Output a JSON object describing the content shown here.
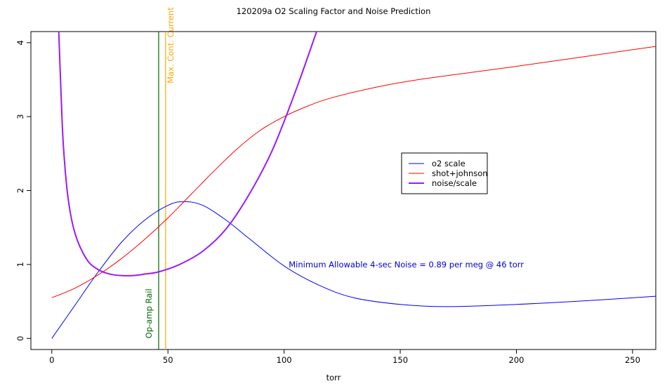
{
  "chart_data": {
    "type": "line",
    "title": "120209a   O2 Scaling Factor and Noise Prediction",
    "xlabel": "torr",
    "ylabel": "",
    "xlim": [
      -9,
      260
    ],
    "ylim": [
      -0.15,
      4.15
    ],
    "xticks": [
      0,
      50,
      100,
      150,
      200,
      250
    ],
    "yticks": [
      0,
      1,
      2,
      3,
      4
    ],
    "grid": false,
    "legend_position": "center-right",
    "series": [
      {
        "name": "o2 scale",
        "color": "#0000ff",
        "line_width": 1,
        "x": [
          0,
          10,
          20,
          30,
          40,
          50,
          57,
          65,
          75,
          85,
          100,
          115,
          130,
          150,
          170,
          200,
          230,
          260
        ],
        "y": [
          0.0,
          0.45,
          0.9,
          1.3,
          1.6,
          1.8,
          1.85,
          1.8,
          1.6,
          1.35,
          0.98,
          0.72,
          0.55,
          0.46,
          0.43,
          0.46,
          0.51,
          0.57
        ]
      },
      {
        "name": "shot+johnson",
        "color": "#ff0000",
        "line_width": 1,
        "x": [
          0,
          10,
          20,
          30,
          40,
          50,
          60,
          70,
          80,
          90,
          100,
          110,
          120,
          140,
          160,
          200,
          260
        ],
        "y": [
          0.55,
          0.68,
          0.86,
          1.08,
          1.34,
          1.63,
          1.95,
          2.27,
          2.57,
          2.82,
          3.0,
          3.14,
          3.25,
          3.4,
          3.51,
          3.68,
          3.95
        ]
      },
      {
        "name": "noise/scale",
        "color": "#9a1aff",
        "line_width": 2,
        "x": [
          3,
          4,
          5,
          7,
          10,
          15,
          20,
          25,
          30,
          35,
          40,
          46,
          55,
          65,
          75,
          85,
          95,
          105,
          114
        ],
        "y": [
          4.15,
          3.3,
          2.6,
          1.9,
          1.42,
          1.07,
          0.93,
          0.87,
          0.85,
          0.85,
          0.87,
          0.9,
          1.0,
          1.18,
          1.48,
          1.95,
          2.55,
          3.35,
          4.15
        ]
      }
    ],
    "vlines": [
      {
        "x": 46,
        "color": "#006400",
        "label": "Op-amp Rail"
      },
      {
        "x": 49,
        "color": "#ffa500",
        "label": "Max. Cont. Current"
      }
    ],
    "annotation": {
      "text": "Minimum Allowable 4-sec Noise =  0.89  per meg @  46  torr",
      "color": "#0000cd",
      "x": 102,
      "y": 1.0
    }
  }
}
